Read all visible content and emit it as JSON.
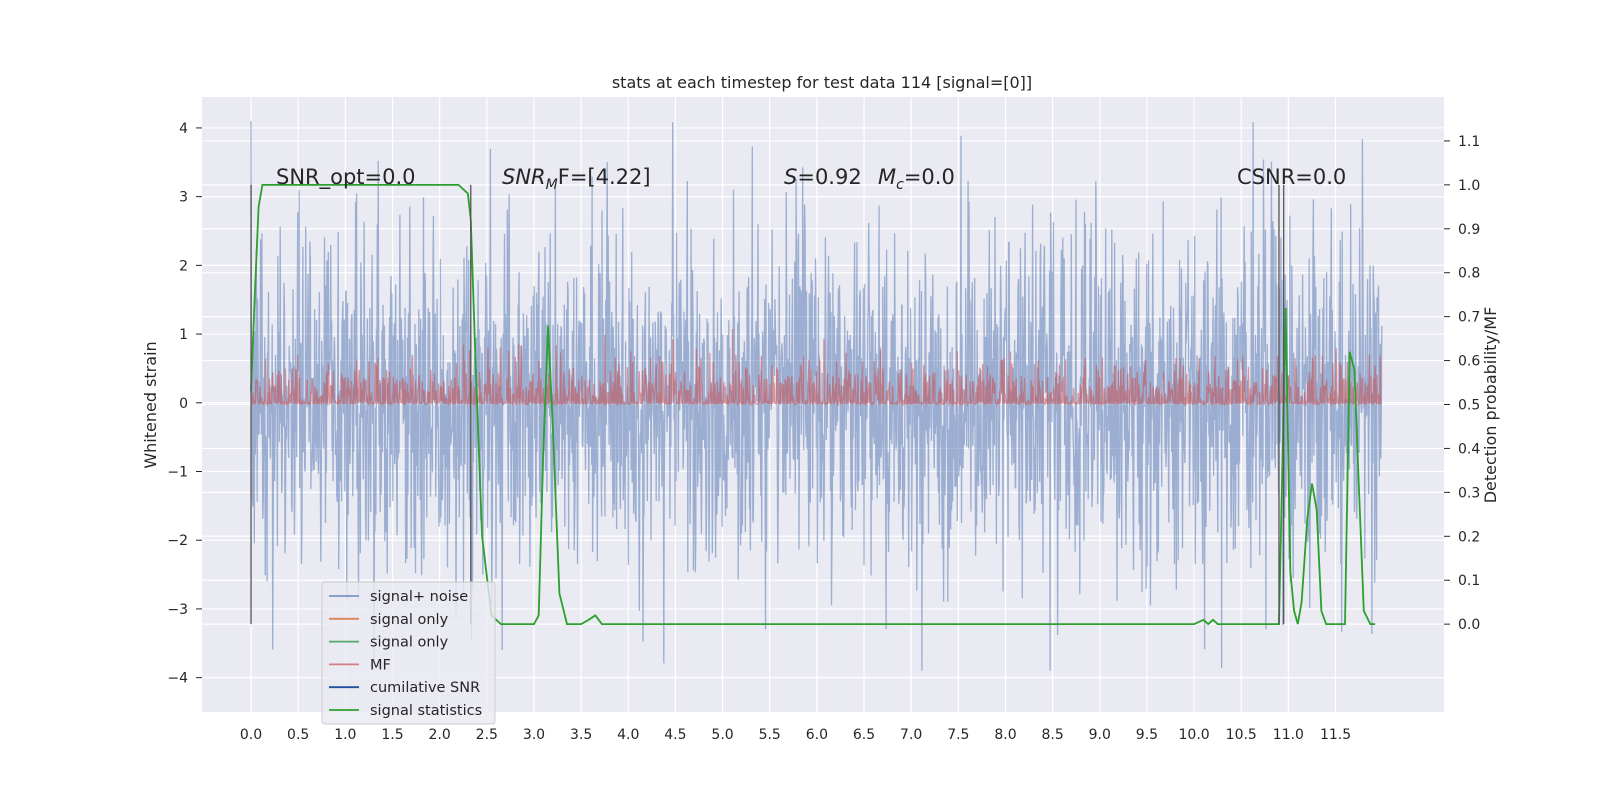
{
  "chart_data": {
    "type": "line",
    "title": "stats at each timestep for test data 114 [signal=[0]]",
    "xlabel": "",
    "ylabel": "Whitened strain",
    "y2label": "Detection probability/MF",
    "xlim": [
      -0.52,
      12.65
    ],
    "ylim": [
      -4.5,
      4.45
    ],
    "y2lim": [
      -0.2,
      1.2
    ],
    "grid": true,
    "x_ticks": [
      "0.0",
      "0.5",
      "1.0",
      "1.5",
      "2.0",
      "2.5",
      "3.0",
      "3.5",
      "4.0",
      "4.5",
      "5.0",
      "5.5",
      "6.0",
      "6.5",
      "7.0",
      "7.5",
      "8.0",
      "8.5",
      "9.0",
      "9.5",
      "10.0",
      "10.5",
      "11.0",
      "11.5"
    ],
    "y_ticks": [
      "4",
      "3",
      "2",
      "1",
      "0",
      "−1",
      "−2",
      "−3",
      "−4"
    ],
    "y_tick_values": [
      4,
      3,
      2,
      1,
      0,
      -1,
      -2,
      -3,
      -4
    ],
    "y2_ticks": [
      "1.1",
      "1.0",
      "0.9",
      "0.8",
      "0.7",
      "0.6",
      "0.5",
      "0.4",
      "0.3",
      "0.2",
      "0.1",
      "0.0"
    ],
    "y2_tick_values": [
      1.1,
      1.0,
      0.9,
      0.8,
      0.7,
      0.6,
      0.5,
      0.4,
      0.3,
      0.2,
      0.1,
      0.0
    ],
    "annotations": {
      "snr_opt": "SNR_opt=0.0",
      "snr_mf_main": "SNR",
      "snr_mf_sub": "M",
      "snr_mf_tail": "F=[4.22]",
      "s_stat": "S",
      "s_value": "=0.92",
      "mc_main": "M",
      "mc_sub": "c",
      "mc_value": "=0.0",
      "csnr": "CSNR=0.0"
    },
    "series": [
      {
        "name": "signal+ noise",
        "color": "#4c72b0",
        "x_range": [
          0.0,
          11.99
        ],
        "y_range": [
          -3.9,
          4.1
        ]
      },
      {
        "name": "signal only",
        "color": "#dd8452"
      },
      {
        "name": "signal only",
        "color": "#55a868"
      },
      {
        "name": "MF",
        "color": "#c44e52",
        "x_range": [
          0.0,
          11.99
        ],
        "y_range": [
          0.0,
          0.85
        ]
      },
      {
        "name": "cumilative SNR",
        "color": "#1f4e9c"
      },
      {
        "name": "signal statistics",
        "color": "#2ca02c",
        "x": [
          0.0,
          0.04,
          0.08,
          0.12,
          0.2,
          0.4,
          1.0,
          2.0,
          2.2,
          2.3,
          2.33,
          2.38,
          2.45,
          2.55,
          2.65,
          2.75,
          2.9,
          3.0,
          3.05,
          3.1,
          3.15,
          3.2,
          3.27,
          3.35,
          3.5,
          3.58,
          3.65,
          3.72,
          4.0,
          6.0,
          8.0,
          10.0,
          10.1,
          10.15,
          10.2,
          10.25,
          10.35,
          10.9,
          10.93,
          10.97,
          11.02,
          11.06,
          11.1,
          11.14,
          11.2,
          11.25,
          11.3,
          11.35,
          11.4,
          11.45,
          11.6,
          11.65,
          11.7,
          11.75,
          11.8,
          11.87,
          11.92
        ],
        "y": [
          0.53,
          0.75,
          0.95,
          1.0,
          1.0,
          1.0,
          1.0,
          1.0,
          1.0,
          0.98,
          0.92,
          0.6,
          0.2,
          0.02,
          0.0,
          0.0,
          0.0,
          0.0,
          0.02,
          0.4,
          0.68,
          0.45,
          0.07,
          0.0,
          0.0,
          0.01,
          0.02,
          0.0,
          0.0,
          0.0,
          0.0,
          0.0,
          0.01,
          0.0,
          0.01,
          0.0,
          0.0,
          0.0,
          0.3,
          0.72,
          0.12,
          0.03,
          0.0,
          0.05,
          0.24,
          0.32,
          0.26,
          0.03,
          0.0,
          0.0,
          0.0,
          0.62,
          0.58,
          0.3,
          0.03,
          0.0,
          0.0
        ]
      }
    ],
    "vertical_lines": [
      0.0,
      2.33,
      10.9,
      10.95
    ],
    "legend_location": "lower-left"
  }
}
